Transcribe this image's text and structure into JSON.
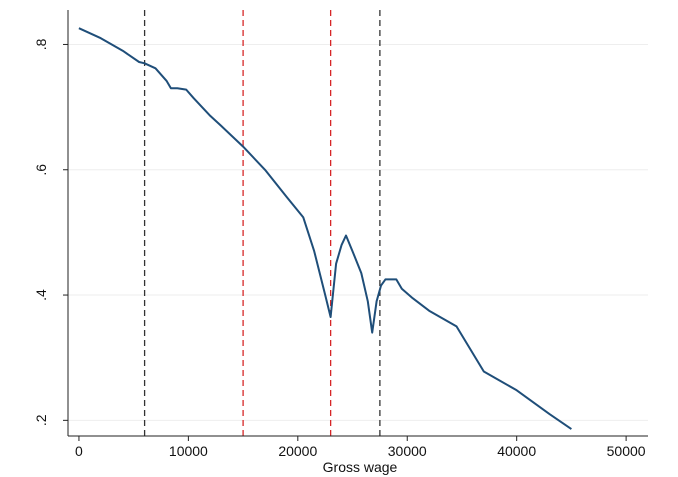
{
  "chart_data": {
    "type": "line",
    "title": "",
    "xlabel": "Gross wage",
    "ylabel": "",
    "xlim": [
      -1000,
      52000
    ],
    "ylim": [
      0.175,
      0.855
    ],
    "xticks": [
      0,
      10000,
      20000,
      30000,
      40000,
      50000
    ],
    "xtick_labels": [
      "0",
      "10000",
      "20000",
      "30000",
      "40000",
      "50000"
    ],
    "yticks": [
      0.2,
      0.4,
      0.6,
      0.8
    ],
    "ytick_labels": [
      ".2",
      ".4",
      ".6",
      ".8"
    ],
    "grid": "horizontal",
    "series": [
      {
        "color": "#1f4e79",
        "x": [
          0,
          2000,
          4000,
          5500,
          6000,
          7000,
          8000,
          8400,
          9000,
          9800,
          10500,
          12000,
          13000,
          15000,
          17000,
          19000,
          20500,
          21500,
          22500,
          23000,
          23500,
          24000,
          24400,
          25000,
          25800,
          26400,
          26800,
          27200,
          27600,
          28000,
          28500,
          29000,
          29500,
          30500,
          32000,
          34500,
          37000,
          40000,
          43000,
          45000
        ],
        "y": [
          0.826,
          0.81,
          0.79,
          0.772,
          0.77,
          0.762,
          0.742,
          0.73,
          0.73,
          0.728,
          0.714,
          0.686,
          0.67,
          0.637,
          0.6,
          0.556,
          0.524,
          0.47,
          0.4,
          0.365,
          0.45,
          0.48,
          0.495,
          0.47,
          0.435,
          0.39,
          0.34,
          0.39,
          0.415,
          0.425,
          0.425,
          0.425,
          0.41,
          0.395,
          0.375,
          0.35,
          0.278,
          0.248,
          0.21,
          0.186
        ]
      }
    ],
    "vlines": [
      {
        "x": 6000,
        "color": "#333333"
      },
      {
        "x": 15000,
        "color": "#d62728"
      },
      {
        "x": 23000,
        "color": "#d62728"
      },
      {
        "x": 27500,
        "color": "#333333"
      }
    ]
  }
}
